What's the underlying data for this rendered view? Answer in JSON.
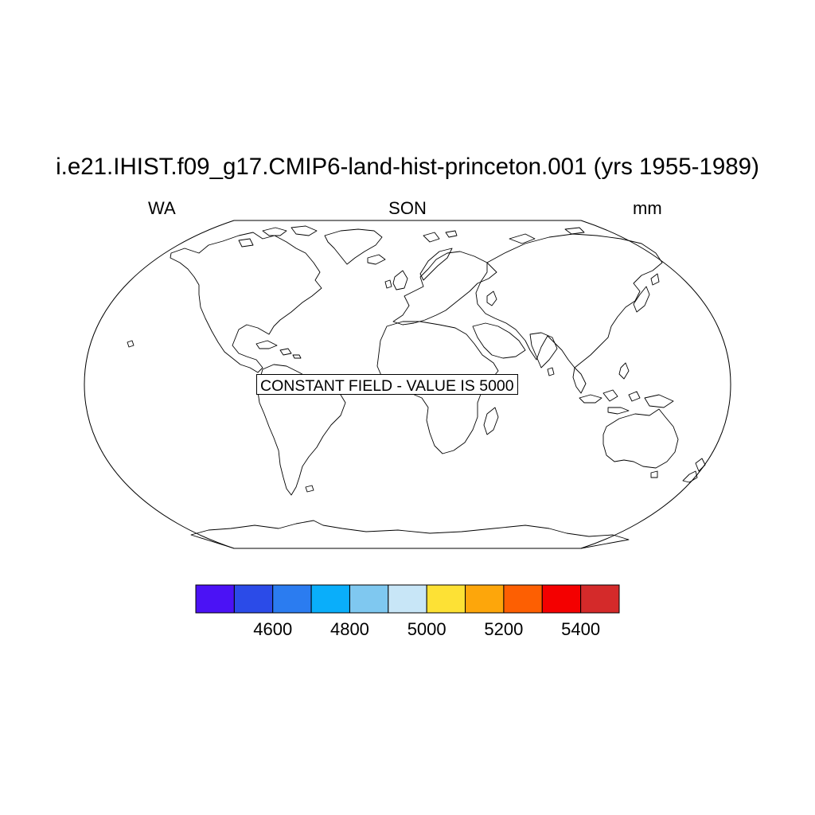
{
  "map": {
    "title": "i.e21.IHIST.f09_g17.CMIP6-land-hist-princeton.001 (yrs 1955-1989)",
    "left_string": "WA",
    "center_string": "SON",
    "right_string": "mm",
    "projection": "robinson",
    "message": "CONSTANT FIELD - VALUE IS 5000"
  },
  "colorbar": {
    "colors": [
      "#4b12f5",
      "#2b4be8",
      "#2b7cf0",
      "#0aaefa",
      "#7fc8f0",
      "#c8e6f7",
      "#fde135",
      "#fda60b",
      "#fd5f02",
      "#f40000",
      "#d42a2a"
    ],
    "labels": [
      "4600",
      "4800",
      "5000",
      "5200",
      "5400"
    ]
  },
  "chart_data": {
    "type": "heatmap",
    "title": "i.e21.IHIST.f09_g17.CMIP6-land-hist-princeton.001 (yrs 1955-1989)",
    "variable": "WA",
    "season": "SON",
    "units": "mm",
    "constant_value": 5000,
    "levels": [
      4500,
      4600,
      4700,
      4800,
      4900,
      5000,
      5100,
      5200,
      5300,
      5400
    ],
    "colorbar_tick_labels": [
      4600,
      4800,
      5000,
      5200,
      5400
    ]
  }
}
